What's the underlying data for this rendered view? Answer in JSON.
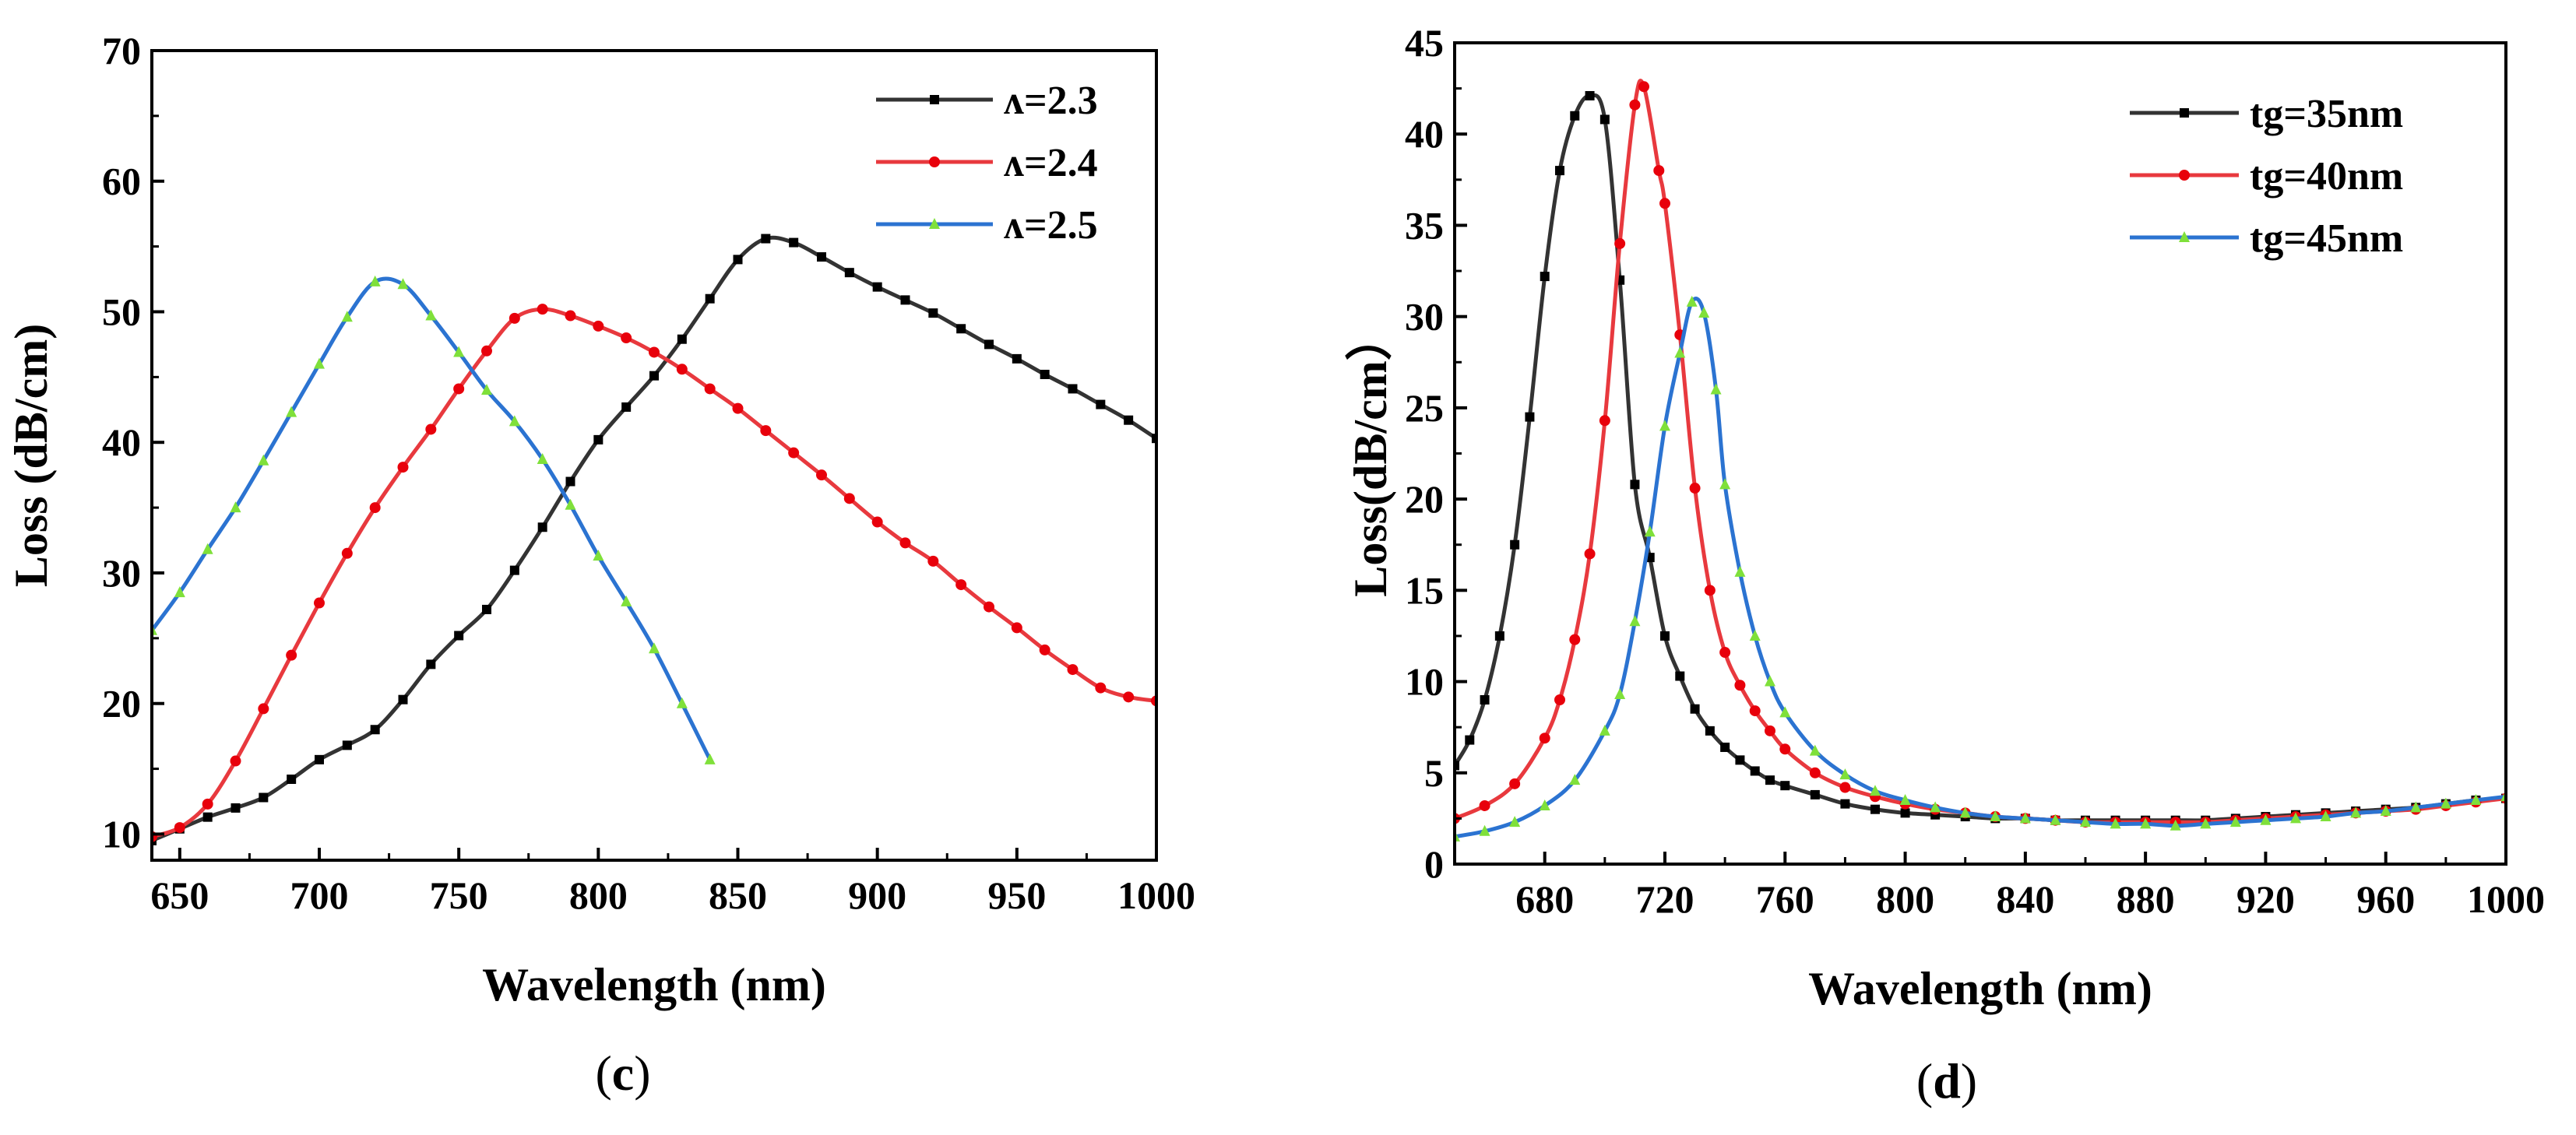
{
  "chart_data": [
    {
      "id": "c",
      "type": "line",
      "panel_label": "c",
      "xlabel": "Wavelength (nm)",
      "ylabel": "Loss (dB/cm)",
      "xlim": [
        640,
        1000
      ],
      "ylim": [
        8,
        70
      ],
      "xticks": [
        650,
        700,
        750,
        800,
        850,
        900,
        950,
        1000
      ],
      "yticks": [
        10,
        20,
        30,
        40,
        50,
        60,
        70
      ],
      "legend_position": "top-right",
      "series": [
        {
          "name": "ʌ=2.3",
          "color": "#333333",
          "marker": "square",
          "x": [
            640,
            650,
            660,
            670,
            680,
            690,
            700,
            710,
            720,
            730,
            740,
            750,
            760,
            770,
            780,
            790,
            800,
            810,
            820,
            830,
            840,
            850,
            860,
            870,
            880,
            890,
            900,
            910,
            920,
            930,
            940,
            950,
            960,
            970,
            980,
            990,
            1000
          ],
          "y": [
            9.5,
            10.4,
            11.3,
            12.0,
            12.8,
            14.2,
            15.7,
            16.8,
            18.0,
            20.3,
            23.0,
            25.2,
            27.2,
            30.2,
            33.5,
            37.0,
            40.2,
            42.7,
            45.1,
            47.9,
            51.0,
            54.0,
            55.6,
            55.3,
            54.2,
            53.0,
            51.9,
            50.9,
            49.9,
            48.7,
            47.5,
            46.4,
            45.2,
            44.1,
            42.9,
            41.7,
            40.3
          ]
        },
        {
          "name": "ʌ=2.4",
          "color": "#e8393e",
          "marker": "circle",
          "x": [
            640,
            650,
            660,
            670,
            680,
            690,
            700,
            710,
            720,
            730,
            740,
            750,
            760,
            770,
            780,
            790,
            800,
            810,
            820,
            830,
            840,
            850,
            860,
            870,
            880,
            890,
            900,
            910,
            920,
            930,
            940,
            950,
            960,
            970,
            980,
            990,
            1000
          ],
          "y": [
            9.8,
            10.5,
            12.3,
            15.6,
            19.6,
            23.7,
            27.7,
            31.5,
            35.0,
            38.1,
            41.0,
            44.1,
            47.0,
            49.5,
            50.2,
            49.7,
            48.9,
            48.0,
            46.9,
            45.6,
            44.1,
            42.6,
            40.9,
            39.2,
            37.5,
            35.7,
            33.9,
            32.3,
            30.9,
            29.1,
            27.4,
            25.8,
            24.1,
            22.6,
            21.2,
            20.5,
            20.2
          ]
        },
        {
          "name": "ʌ=2.5",
          "color": "#2b73d1",
          "marker": "triangle",
          "x": [
            640,
            650,
            660,
            670,
            680,
            690,
            700,
            710,
            720,
            730,
            740,
            750,
            760,
            770,
            780,
            790,
            800,
            810,
            820,
            830,
            840
          ],
          "y": [
            25.6,
            28.5,
            31.8,
            35.0,
            38.6,
            42.3,
            46.0,
            49.6,
            52.3,
            52.1,
            49.7,
            46.9,
            44.0,
            41.6,
            38.7,
            35.2,
            31.3,
            27.8,
            24.2,
            20.0,
            15.7
          ]
        }
      ]
    },
    {
      "id": "d",
      "type": "line",
      "panel_label": "d",
      "xlabel": "Wavelength (nm)",
      "ylabel": "Loss(dB/cm）",
      "xlim": [
        650,
        1000
      ],
      "ylim": [
        0,
        45
      ],
      "xticks": [
        680,
        720,
        760,
        800,
        840,
        880,
        920,
        960,
        1000
      ],
      "yticks": [
        0,
        5,
        10,
        15,
        20,
        25,
        30,
        35,
        40,
        45
      ],
      "legend_position": "top-right",
      "series": [
        {
          "name": "tg=35nm",
          "color": "#333333",
          "marker": "square",
          "x": [
            650,
            655,
            660,
            665,
            670,
            675,
            680,
            685,
            690,
            695,
            700,
            705,
            710,
            715,
            720,
            725,
            730,
            735,
            740,
            745,
            750,
            755,
            760,
            770,
            780,
            790,
            800,
            810,
            820,
            830,
            840,
            850,
            860,
            870,
            880,
            890,
            900,
            910,
            920,
            930,
            940,
            950,
            960,
            970,
            980,
            990,
            1000
          ],
          "y": [
            5.4,
            6.8,
            9.0,
            12.5,
            17.5,
            24.5,
            32.2,
            38.0,
            41.0,
            42.1,
            40.8,
            32.0,
            20.8,
            16.8,
            12.5,
            10.3,
            8.5,
            7.3,
            6.4,
            5.7,
            5.1,
            4.6,
            4.3,
            3.8,
            3.3,
            3.0,
            2.8,
            2.7,
            2.6,
            2.5,
            2.5,
            2.4,
            2.4,
            2.4,
            2.4,
            2.4,
            2.4,
            2.5,
            2.6,
            2.7,
            2.8,
            2.9,
            3.0,
            3.1,
            3.3,
            3.5,
            3.6
          ]
        },
        {
          "name": "tg=40nm",
          "color": "#e8393e",
          "marker": "circle",
          "x": [
            650,
            660,
            670,
            680,
            685,
            690,
            695,
            700,
            705,
            710,
            713,
            718,
            720,
            725,
            730,
            735,
            740,
            745,
            750,
            755,
            760,
            770,
            780,
            790,
            800,
            810,
            820,
            830,
            840,
            850,
            860,
            870,
            880,
            890,
            900,
            910,
            920,
            930,
            940,
            950,
            960,
            970,
            980,
            990,
            1000
          ],
          "y": [
            2.5,
            3.2,
            4.4,
            6.9,
            9.0,
            12.3,
            17.0,
            24.3,
            34.0,
            41.6,
            42.6,
            38.0,
            36.2,
            29.0,
            20.6,
            15.0,
            11.6,
            9.8,
            8.4,
            7.3,
            6.3,
            5.0,
            4.2,
            3.7,
            3.3,
            3.0,
            2.8,
            2.6,
            2.5,
            2.4,
            2.3,
            2.3,
            2.3,
            2.3,
            2.3,
            2.4,
            2.5,
            2.6,
            2.7,
            2.8,
            2.9,
            3.0,
            3.2,
            3.4,
            3.6
          ]
        },
        {
          "name": "tg=45nm",
          "color": "#2b73d1",
          "marker": "triangle",
          "x": [
            650,
            660,
            670,
            680,
            690,
            700,
            705,
            710,
            715,
            720,
            725,
            729,
            733,
            737,
            740,
            745,
            750,
            755,
            760,
            770,
            780,
            790,
            800,
            810,
            820,
            830,
            840,
            850,
            860,
            870,
            880,
            890,
            900,
            910,
            920,
            930,
            940,
            950,
            960,
            970,
            980,
            990,
            1000
          ],
          "y": [
            1.5,
            1.8,
            2.3,
            3.2,
            4.6,
            7.3,
            9.3,
            13.3,
            18.2,
            24.0,
            28.0,
            30.8,
            30.2,
            26.0,
            20.8,
            16.0,
            12.5,
            10.0,
            8.3,
            6.2,
            4.9,
            4.0,
            3.5,
            3.1,
            2.8,
            2.6,
            2.5,
            2.4,
            2.3,
            2.2,
            2.2,
            2.1,
            2.2,
            2.3,
            2.4,
            2.5,
            2.6,
            2.8,
            2.9,
            3.1,
            3.3,
            3.5,
            3.7
          ]
        }
      ]
    }
  ]
}
